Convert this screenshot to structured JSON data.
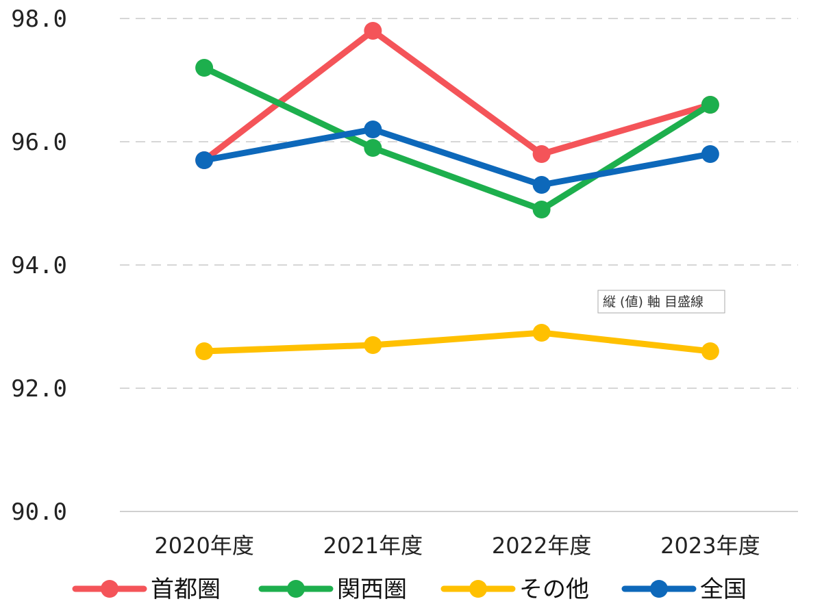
{
  "chart_data": {
    "type": "line",
    "categories": [
      "2020年度",
      "2021年度",
      "2022年度",
      "2023年度"
    ],
    "ylim": [
      90.0,
      98.0
    ],
    "yticks": [
      "90.0",
      "92.0",
      "94.0",
      "96.0",
      "98.0"
    ],
    "grid": "horizontal-dashed",
    "legend_position": "bottom",
    "series": [
      {
        "name": "首都圏",
        "color": "#F45459",
        "values": [
          95.7,
          97.8,
          95.8,
          96.6
        ]
      },
      {
        "name": "関西圏",
        "color": "#1DAF4D",
        "values": [
          97.2,
          95.9,
          94.9,
          96.6
        ]
      },
      {
        "name": "その他",
        "color": "#FFC000",
        "values": [
          92.6,
          92.7,
          92.9,
          92.6
        ]
      },
      {
        "name": "全国",
        "color": "#0D68BA",
        "values": [
          95.7,
          96.2,
          95.3,
          95.8
        ]
      }
    ],
    "tooltip": "縦 (値) 軸 目盛線"
  }
}
